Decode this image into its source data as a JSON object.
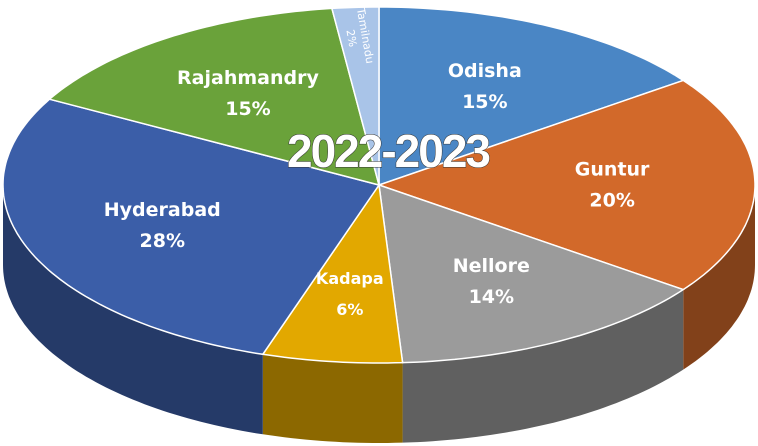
{
  "chart_data": {
    "type": "pie3d",
    "title": "2022-2023",
    "categories": [
      "Odisha",
      "Guntur",
      "Nellore",
      "Kadapa",
      "Hyderabad",
      "Rajahmandry",
      "Tamilnadu"
    ],
    "values": [
      15,
      20,
      14,
      6,
      28,
      15,
      2
    ],
    "value_labels": [
      "15%",
      "20%",
      "14%",
      "6%",
      "28%",
      "15%",
      "2%"
    ],
    "colors": [
      "#4a86c5",
      "#d2692a",
      "#9b9b9b",
      "#e2a800",
      "#3b5ea8",
      "#6aa23a",
      "#a9c4e8"
    ]
  }
}
